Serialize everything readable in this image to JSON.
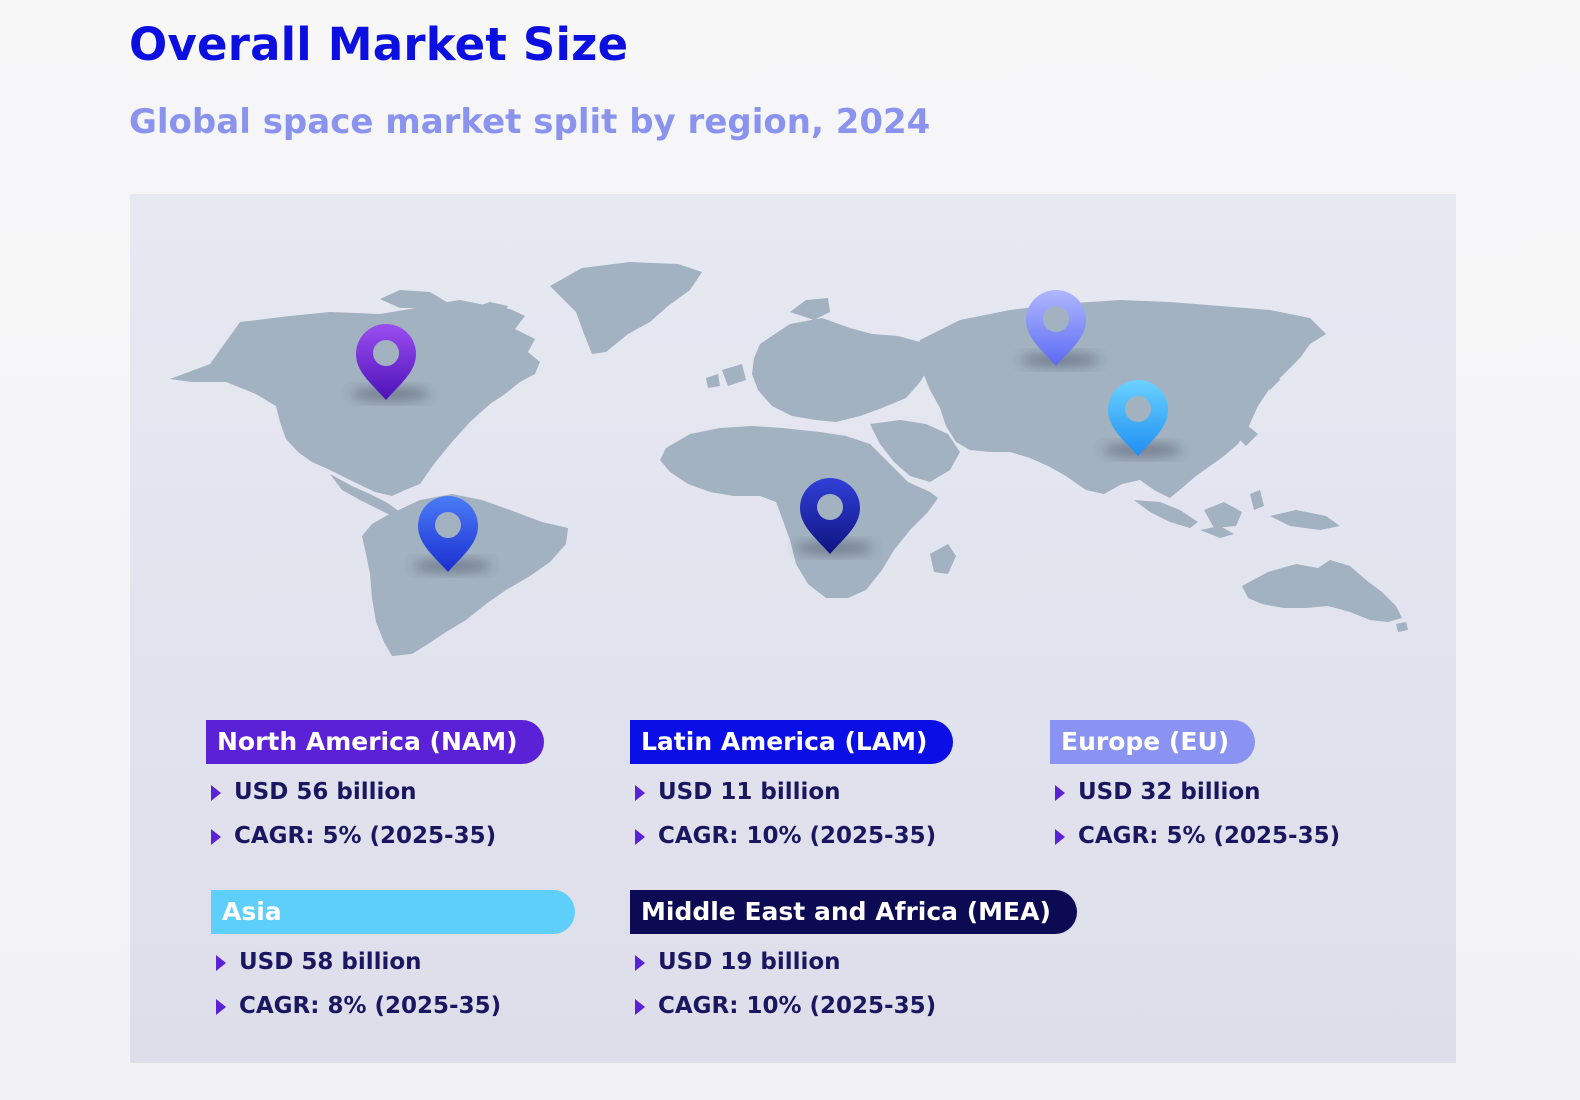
{
  "header": {
    "title": "Overall Market Size",
    "subtitle": "Global space market split by region, 2024"
  },
  "map": {
    "land_color": "#a2b2c0",
    "pins": [
      {
        "name": "north-america-pin-icon",
        "color_top": "#9b4ef0",
        "color_bottom": "#4c12b8"
      },
      {
        "name": "latin-america-pin-icon",
        "color_top": "#4a7cf6",
        "color_bottom": "#1a2ed0"
      },
      {
        "name": "africa-pin-icon",
        "color_top": "#3140d8",
        "color_bottom": "#0d1380"
      },
      {
        "name": "europe-pin-icon",
        "color_top": "#b0b8ff",
        "color_bottom": "#5b6af2"
      },
      {
        "name": "asia-pin-icon",
        "color_top": "#6ad2ff",
        "color_bottom": "#1f8ef2"
      }
    ]
  },
  "regions": [
    {
      "label": "North America (NAM)",
      "color": "#5b21d6",
      "value": "USD 56 billion",
      "cagr": "CAGR: 5% (2025-35)"
    },
    {
      "label": "Latin America (LAM)",
      "color": "#0b0fe6",
      "value": "USD 11 billion",
      "cagr": "CAGR: 10% (2025-35)"
    },
    {
      "label": "Europe (EU)",
      "color": "#8a93f2",
      "value": "USD 32 billion",
      "cagr": "CAGR: 5% (2025-35)"
    },
    {
      "label": "Asia",
      "color": "#5ecffa",
      "value": "USD 58 billion",
      "cagr": "CAGR: 8% (2025-35)"
    },
    {
      "label": "Middle East and Africa (MEA)",
      "color": "#0c0a52",
      "value": "USD 19 billion",
      "cagr": "CAGR: 10% (2025-35)"
    }
  ]
}
